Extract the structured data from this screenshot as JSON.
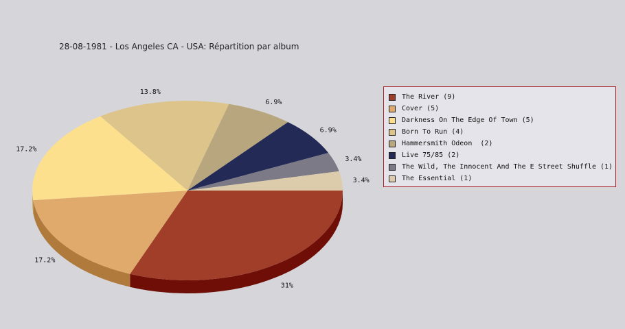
{
  "chart_data": {
    "type": "pie",
    "title": "28-08-1981 - Los Angeles CA - USA:  Répartition par album",
    "legend_position": "right",
    "slices": [
      {
        "label": "The River (9)",
        "value": 9,
        "pct_label": "31%",
        "color": "#a03e2a",
        "side_color": "#6e0e06"
      },
      {
        "label": "Cover (5)",
        "value": 5,
        "pct_label": "17.2%",
        "color": "#e0aa6c",
        "side_color": "#b07a3c"
      },
      {
        "label": "Darkness On The Edge Of Town (5)",
        "value": 5,
        "pct_label": "17.2%",
        "color": "#fde08e",
        "side_color": "#cdb05e"
      },
      {
        "label": "Born To Run (4)",
        "value": 4,
        "pct_label": "13.8%",
        "color": "#dcc48a",
        "side_color": "#ac945a"
      },
      {
        "label": "Hammersmith Odeon  (2)",
        "value": 2,
        "pct_label": "6.9%",
        "color": "#b8a67e",
        "side_color": "#88764e"
      },
      {
        "label": "Live 75/85 (2)",
        "value": 2,
        "pct_label": "6.9%",
        "color": "#232a56",
        "side_color": "#10142e"
      },
      {
        "label": "The Wild, The Innocent And The E Street Shuffle (1)",
        "value": 1,
        "pct_label": "3.4%",
        "color": "#7c7a86",
        "side_color": "#55535e"
      },
      {
        "label": "The Essential (1)",
        "value": 1,
        "pct_label": "3.4%",
        "color": "#dcccac",
        "side_color": "#ac9c7c"
      }
    ]
  },
  "colors": {
    "background": "#d5d5da",
    "legend_border": "#a8242a",
    "legend_background": "#e4e4ea"
  }
}
